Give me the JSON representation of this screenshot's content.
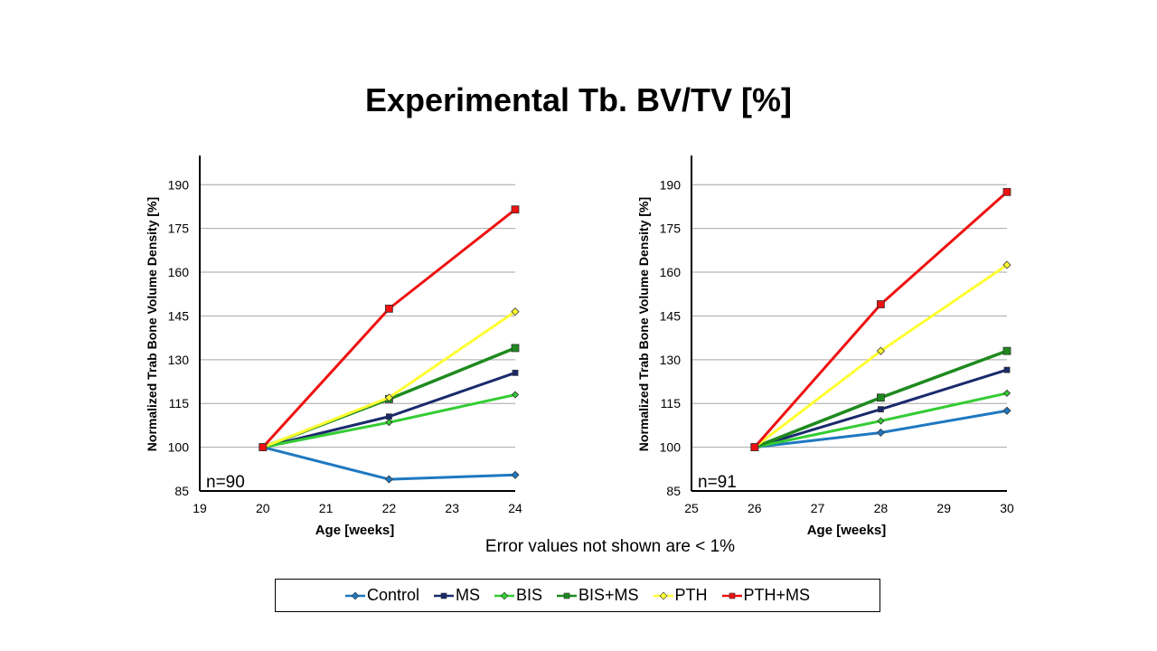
{
  "title": "Experimental Tb. BV/TV [%]",
  "footnote": "Error values not shown are < 1%",
  "colors": {
    "Control": "#1f78c1",
    "MS": "#1a2a6c",
    "BIS": "#33cc33",
    "BIS+MS": "#1e8a1e",
    "PTH": "#ffff33",
    "PTH+MS": "#ee1111"
  },
  "legend": [
    {
      "name": "Control",
      "marker": "diamond"
    },
    {
      "name": "MS",
      "marker": "square"
    },
    {
      "name": "BIS",
      "marker": "diamond"
    },
    {
      "name": "BIS+MS",
      "marker": "square"
    },
    {
      "name": "PTH",
      "marker": "diamond"
    },
    {
      "name": "PTH+MS",
      "marker": "square"
    }
  ],
  "chart_data": [
    {
      "type": "line",
      "annotation": "n=90",
      "xlabel": "Age [weeks]",
      "ylabel": "Normalized Trab Bone Volume Density [%]",
      "xlim": [
        19,
        24
      ],
      "ylim": [
        85,
        200
      ],
      "xticks": [
        19,
        20,
        21,
        22,
        23,
        24
      ],
      "yticks": [
        85,
        100,
        115,
        130,
        145,
        160,
        175,
        190
      ],
      "grid": "horizontal",
      "x": [
        20,
        22,
        24
      ],
      "series": [
        {
          "name": "Control",
          "values": [
            100,
            89,
            90.5
          ]
        },
        {
          "name": "MS",
          "values": [
            100,
            110.5,
            125.5
          ]
        },
        {
          "name": "BIS",
          "values": [
            100,
            108.5,
            118
          ]
        },
        {
          "name": "BIS+MS",
          "values": [
            100,
            116.5,
            134
          ]
        },
        {
          "name": "PTH",
          "values": [
            100,
            117,
            146.5
          ]
        },
        {
          "name": "PTH+MS",
          "values": [
            100,
            147.5,
            181.5
          ]
        }
      ]
    },
    {
      "type": "line",
      "annotation": "n=91",
      "xlabel": "Age [weeks]",
      "ylabel": "Normalized Trab Bone Volume Density [%]",
      "xlim": [
        25,
        30
      ],
      "ylim": [
        85,
        200
      ],
      "xticks": [
        25,
        26,
        27,
        28,
        29,
        30
      ],
      "yticks": [
        85,
        100,
        115,
        130,
        145,
        160,
        175,
        190
      ],
      "grid": "horizontal",
      "x": [
        26,
        28,
        30
      ],
      "series": [
        {
          "name": "Control",
          "values": [
            100,
            105,
            112.5
          ]
        },
        {
          "name": "MS",
          "values": [
            100,
            113,
            126.5
          ]
        },
        {
          "name": "BIS",
          "values": [
            100,
            109,
            118.5
          ]
        },
        {
          "name": "BIS+MS",
          "values": [
            100,
            117,
            133
          ]
        },
        {
          "name": "PTH",
          "values": [
            100,
            133,
            162.5
          ]
        },
        {
          "name": "PTH+MS",
          "values": [
            100,
            149,
            187.5
          ]
        }
      ]
    }
  ]
}
